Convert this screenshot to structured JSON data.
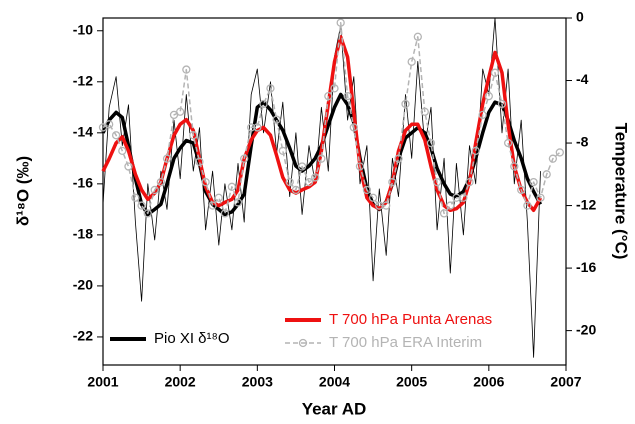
{
  "chart_data": {
    "type": "line",
    "xlabel": "Year AD",
    "ylabel": "δ¹⁸O (‰)",
    "y2label": "Temperature (°C)",
    "xlim": [
      2001,
      2007
    ],
    "xticks": [
      2001,
      2002,
      2003,
      2004,
      2005,
      2006,
      2007
    ],
    "ylim": [
      -23.1,
      -9.5
    ],
    "yticks": [
      -10,
      -12,
      -14,
      -16,
      -18,
      -20,
      -22
    ],
    "y2lim": [
      -22.2,
      0
    ],
    "y2ticks": [
      0,
      -4,
      -8,
      -12,
      -16,
      -20
    ],
    "series": [
      {
        "color": "#000000",
        "x": [
          2001,
          2001.08,
          2001.17,
          2001.25,
          2001.33,
          2001.42,
          2001.5,
          2001.58,
          2001.67,
          2001.75,
          2001.83,
          2001.92,
          2002,
          2002.08,
          2002.17,
          2002.25,
          2002.33,
          2002.42,
          2002.5,
          2002.58,
          2002.67,
          2002.75,
          2002.83,
          2002.92,
          2003,
          2003.08,
          2003.17,
          2003.25,
          2003.33,
          2003.42,
          2003.5,
          2003.58,
          2003.67,
          2003.75,
          2003.83,
          2003.92,
          2004,
          2004.08,
          2004.17,
          2004.25,
          2004.33,
          2004.42,
          2004.5,
          2004.58,
          2004.67,
          2004.75,
          2004.83,
          2004.92,
          2005,
          2005.08,
          2005.17,
          2005.25,
          2005.33,
          2005.42,
          2005.5,
          2005.58,
          2005.67,
          2005.75,
          2005.83,
          2005.92,
          2006,
          2006.08,
          2006.17,
          2006.25,
          2006.33,
          2006.42,
          2006.5,
          2006.58,
          2006.67
        ],
        "values": [
          -16.8,
          -13.0,
          -11.8,
          -14.5,
          -12.9,
          -17.5,
          -20.6,
          -16.0,
          -18.2,
          -15.5,
          -17.0,
          -13.5,
          -15.8,
          -12.5,
          -15.5,
          -13.8,
          -17.8,
          -15.5,
          -18.4,
          -16.0,
          -17.8,
          -15.2,
          -17.5,
          -12.5,
          -11.5,
          -14.0,
          -12.0,
          -14.8,
          -12.8,
          -16.5,
          -14.0,
          -17.2,
          -14.5,
          -16.0,
          -13.0,
          -15.5,
          -11.0,
          -9.8,
          -13.5,
          -11.8,
          -16.0,
          -14.5,
          -19.8,
          -16.2,
          -18.8,
          -15.0,
          -16.5,
          -12.5,
          -15.0,
          -11.2,
          -14.5,
          -13.0,
          -17.8,
          -15.0,
          -19.5,
          -15.2,
          -18.0,
          -14.5,
          -16.0,
          -11.5,
          -12.5,
          -9.5,
          -14.0,
          -11.5,
          -16.0,
          -13.5,
          -17.5,
          -22.8,
          -15.5
        ]
      },
      {
        "name": "Pio XI δ¹⁸O",
        "color": "#000000",
        "x": [
          2001,
          2001.08,
          2001.17,
          2001.25,
          2001.33,
          2001.42,
          2001.5,
          2001.58,
          2001.67,
          2001.75,
          2001.83,
          2001.92,
          2002,
          2002.08,
          2002.17,
          2002.25,
          2002.33,
          2002.42,
          2002.5,
          2002.58,
          2002.67,
          2002.75,
          2002.83,
          2002.92,
          2003,
          2003.08,
          2003.17,
          2003.25,
          2003.33,
          2003.42,
          2003.5,
          2003.58,
          2003.67,
          2003.75,
          2003.83,
          2003.92,
          2004,
          2004.08,
          2004.17,
          2004.25,
          2004.33,
          2004.42,
          2004.5,
          2004.58,
          2004.67,
          2004.75,
          2004.83,
          2004.92,
          2005,
          2005.08,
          2005.17,
          2005.25,
          2005.33,
          2005.42,
          2005.5,
          2005.58,
          2005.67,
          2005.75,
          2005.83,
          2005.92,
          2006,
          2006.08,
          2006.17,
          2006.25,
          2006.33,
          2006.42,
          2006.5,
          2006.58,
          2006.67
        ],
        "values": [
          -14.0,
          -13.5,
          -13.2,
          -13.4,
          -14.5,
          -15.8,
          -16.8,
          -17.2,
          -17.0,
          -16.8,
          -16.0,
          -15.0,
          -14.6,
          -14.3,
          -14.4,
          -15.2,
          -16.3,
          -16.8,
          -17.0,
          -17.2,
          -17.1,
          -16.8,
          -16.4,
          -14.5,
          -13.0,
          -12.8,
          -13.1,
          -13.5,
          -13.9,
          -14.6,
          -15.3,
          -15.5,
          -15.3,
          -15.0,
          -14.5,
          -13.7,
          -13.0,
          -12.5,
          -12.9,
          -13.6,
          -15.0,
          -16.2,
          -16.8,
          -17.0,
          -16.7,
          -16.0,
          -15.0,
          -14.2,
          -14.0,
          -13.8,
          -14.0,
          -14.6,
          -15.4,
          -16.0,
          -16.4,
          -16.5,
          -16.3,
          -15.8,
          -15.0,
          -14.0,
          -13.2,
          -12.8,
          -12.9,
          -13.5,
          -14.3,
          -15.0,
          -15.8,
          -16.3,
          -16.8
        ]
      },
      {
        "name": "T 700 hPa Punta Arenas",
        "color": "#ee1111",
        "axis": "y2",
        "x": [
          2001,
          2001.08,
          2001.17,
          2001.25,
          2001.33,
          2001.42,
          2001.5,
          2001.58,
          2001.67,
          2001.75,
          2001.83,
          2001.92,
          2002,
          2002.08,
          2002.17,
          2002.25,
          2002.33,
          2002.42,
          2002.5,
          2002.58,
          2002.67,
          2002.75,
          2002.83,
          2002.92,
          2003,
          2003.08,
          2003.17,
          2003.25,
          2003.33,
          2003.42,
          2003.5,
          2003.58,
          2003.67,
          2003.75,
          2003.83,
          2003.92,
          2004,
          2004.08,
          2004.17,
          2004.25,
          2004.33,
          2004.42,
          2004.5,
          2004.58,
          2004.67,
          2004.75,
          2004.83,
          2004.92,
          2005,
          2005.08,
          2005.17,
          2005.25,
          2005.33,
          2005.42,
          2005.5,
          2005.58,
          2005.67,
          2005.75,
          2005.83,
          2005.92,
          2006,
          2006.08,
          2006.17,
          2006.25,
          2006.33,
          2006.42,
          2006.5,
          2006.58,
          2006.67
        ],
        "values": [
          -9.8,
          -9.0,
          -8.0,
          -7.6,
          -8.5,
          -10.0,
          -11.0,
          -11.6,
          -11.2,
          -10.5,
          -9.0,
          -7.5,
          -6.8,
          -6.5,
          -7.2,
          -9.0,
          -10.8,
          -11.8,
          -12.0,
          -11.8,
          -11.6,
          -11.0,
          -9.0,
          -7.8,
          -7.2,
          -7.0,
          -7.5,
          -8.8,
          -10.2,
          -11.0,
          -11.2,
          -11.0,
          -10.8,
          -10.5,
          -8.5,
          -5.5,
          -2.8,
          -1.2,
          -2.5,
          -6.0,
          -9.5,
          -11.5,
          -12.0,
          -12.2,
          -11.8,
          -10.5,
          -8.5,
          -7.2,
          -6.8,
          -6.8,
          -7.8,
          -9.5,
          -11.0,
          -12.0,
          -12.3,
          -12.2,
          -11.8,
          -10.5,
          -8.0,
          -5.5,
          -3.8,
          -2.2,
          -3.5,
          -6.8,
          -9.5,
          -11.0,
          -11.8,
          -12.3,
          -11.5
        ]
      },
      {
        "name": "T 700 hPa ERA Interim",
        "color": "#b4b4b4",
        "axis": "y2",
        "dashed": true,
        "markers": true,
        "x": [
          2001,
          2001.08,
          2001.17,
          2001.25,
          2001.33,
          2001.42,
          2001.5,
          2001.58,
          2001.67,
          2001.75,
          2001.83,
          2001.92,
          2002,
          2002.08,
          2002.17,
          2002.25,
          2002.33,
          2002.42,
          2002.5,
          2002.58,
          2002.67,
          2002.75,
          2002.83,
          2002.92,
          2003,
          2003.08,
          2003.17,
          2003.25,
          2003.33,
          2003.42,
          2003.5,
          2003.58,
          2003.67,
          2003.75,
          2003.83,
          2003.92,
          2004,
          2004.08,
          2004.17,
          2004.25,
          2004.33,
          2004.42,
          2004.5,
          2004.58,
          2004.67,
          2004.75,
          2004.83,
          2004.92,
          2005,
          2005.08,
          2005.17,
          2005.25,
          2005.33,
          2005.42,
          2005.5,
          2005.58,
          2005.67,
          2005.75,
          2005.83,
          2005.92,
          2006,
          2006.08,
          2006.17,
          2006.25,
          2006.33,
          2006.42,
          2006.5,
          2006.58,
          2006.67,
          2006.75,
          2006.83,
          2006.92
        ],
        "values": [
          -7.0,
          -6.8,
          -7.5,
          -8.5,
          -9.5,
          -11.5,
          -12.0,
          -12.5,
          -11.0,
          -10.5,
          -9.0,
          -6.2,
          -6.0,
          -3.3,
          -7.5,
          -9.2,
          -10.5,
          -12.0,
          -11.5,
          -12.5,
          -10.8,
          -11.8,
          -9.0,
          -7.0,
          -7.0,
          -5.5,
          -4.5,
          -6.5,
          -8.5,
          -10.5,
          -11.0,
          -9.5,
          -10.5,
          -10.2,
          -9.0,
          -5.0,
          -4.5,
          -0.3,
          -5.0,
          -7.0,
          -9.5,
          -11.0,
          -11.5,
          -12.0,
          -12.0,
          -10.5,
          -9.0,
          -5.5,
          -2.8,
          -1.2,
          -6.0,
          -8.0,
          -10.5,
          -12.5,
          -12.0,
          -11.5,
          -11.5,
          -10.5,
          -8.5,
          -6.2,
          -5.0,
          -3.5,
          -5.5,
          -8.0,
          -9.5,
          -11.0,
          -12.0,
          -10.5,
          -11.5,
          -10.0,
          -9.0,
          -8.6
        ]
      }
    ]
  }
}
